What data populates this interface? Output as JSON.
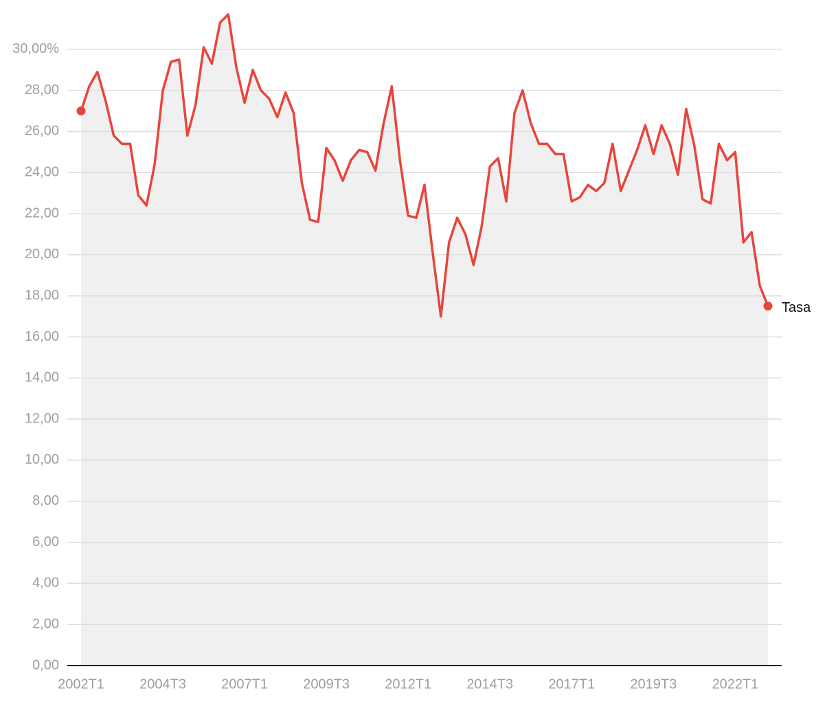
{
  "chart_data": {
    "type": "line",
    "categories": [
      "2002T1",
      null,
      null,
      null,
      null,
      null,
      null,
      null,
      null,
      null,
      "2004T3",
      null,
      null,
      null,
      null,
      null,
      null,
      null,
      null,
      null,
      "2007T1",
      null,
      null,
      null,
      null,
      null,
      null,
      null,
      null,
      null,
      "2009T3",
      null,
      null,
      null,
      null,
      null,
      null,
      null,
      null,
      null,
      "2012T1",
      null,
      null,
      null,
      null,
      null,
      null,
      null,
      null,
      null,
      "2014T3",
      null,
      null,
      null,
      null,
      null,
      null,
      null,
      null,
      null,
      "2017T1",
      null,
      null,
      null,
      null,
      null,
      null,
      null,
      null,
      null,
      "2019T3",
      null,
      null,
      null,
      null,
      null,
      null,
      null,
      null,
      null,
      "2022T1",
      null,
      null,
      null,
      null
    ],
    "series": [
      {
        "name": "Tasa",
        "color": "#e8453c",
        "values": [
          27.0,
          28.2,
          28.9,
          27.5,
          25.8,
          25.4,
          25.4,
          22.9,
          22.4,
          24.4,
          28.0,
          29.4,
          29.5,
          25.8,
          27.3,
          30.1,
          29.3,
          31.3,
          31.7,
          29.1,
          27.4,
          29.0,
          28.0,
          27.6,
          26.7,
          27.9,
          26.9,
          23.5,
          21.7,
          21.6,
          25.2,
          24.6,
          23.6,
          24.6,
          25.1,
          25.0,
          24.1,
          26.4,
          28.2,
          24.6,
          21.9,
          21.8,
          23.4,
          20.1,
          17.0,
          20.6,
          21.8,
          21.0,
          19.5,
          21.4,
          24.3,
          24.7,
          22.6,
          26.9,
          28.0,
          26.4,
          25.4,
          25.4,
          24.9,
          24.9,
          22.6,
          22.8,
          23.4,
          23.1,
          23.5,
          25.4,
          23.1,
          24.1,
          25.1,
          26.3,
          24.9,
          26.3,
          25.4,
          23.9,
          27.1,
          25.3,
          22.7,
          22.5,
          25.4,
          24.6,
          25.0,
          20.6,
          21.1,
          18.5,
          17.5
        ]
      }
    ],
    "ylim": [
      0,
      31.7
    ],
    "yticks": [
      {
        "value": 0,
        "label": "0,00"
      },
      {
        "value": 2,
        "label": "2,00"
      },
      {
        "value": 4,
        "label": "4,00"
      },
      {
        "value": 6,
        "label": "6,00"
      },
      {
        "value": 8,
        "label": "8,00"
      },
      {
        "value": 10,
        "label": "10,00"
      },
      {
        "value": 12,
        "label": "12,00"
      },
      {
        "value": 14,
        "label": "14,00"
      },
      {
        "value": 16,
        "label": "16,00"
      },
      {
        "value": 18,
        "label": "18,00"
      },
      {
        "value": 20,
        "label": "20,00"
      },
      {
        "value": 22,
        "label": "22,00"
      },
      {
        "value": 24,
        "label": "24,00"
      },
      {
        "value": 26,
        "label": "26,00"
      },
      {
        "value": 28,
        "label": "28,00"
      },
      {
        "value": 30,
        "label": "30,00%"
      }
    ],
    "grid": true,
    "area_color": "#f0f0f0"
  }
}
